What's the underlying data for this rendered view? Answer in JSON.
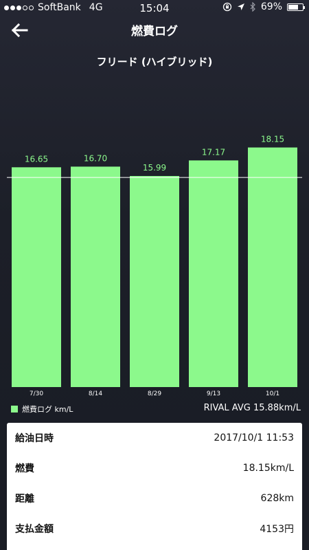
{
  "status_bar": {
    "carrier": "SoftBank",
    "network": "4G",
    "time": "15:04",
    "battery": "69%",
    "battery_level": 0.69,
    "signal_strength": 3
  },
  "nav": {
    "title": "燃費ログ",
    "back_icon": "arrow-left-icon"
  },
  "chart_title": "フリード (ハイブリッド)",
  "chart_data": {
    "type": "bar",
    "categories": [
      "7/30",
      "8/14",
      "8/29",
      "9/13",
      "10/1"
    ],
    "values": [
      16.65,
      16.7,
      15.99,
      17.17,
      18.15
    ],
    "value_labels": [
      "16.65",
      "16.70",
      "15.99",
      "17.17",
      "18.15"
    ],
    "reference_line": 15.88,
    "bar_color": "#8cf98c",
    "label_color": "#8cf98c",
    "legend_placement": "bottom-left",
    "grid": false
  },
  "legend": {
    "label": "燃費ログ km/L",
    "color": "#8cf98c"
  },
  "rival_avg": "RIVAL AVG 15.88km/L",
  "details": [
    {
      "label": "給油日時",
      "value": "2017/10/1 11:53"
    },
    {
      "label": "燃費",
      "value": "18.15km/L"
    },
    {
      "label": "距離",
      "value": "628km"
    },
    {
      "label": "支払金額",
      "value": "4153円"
    }
  ]
}
